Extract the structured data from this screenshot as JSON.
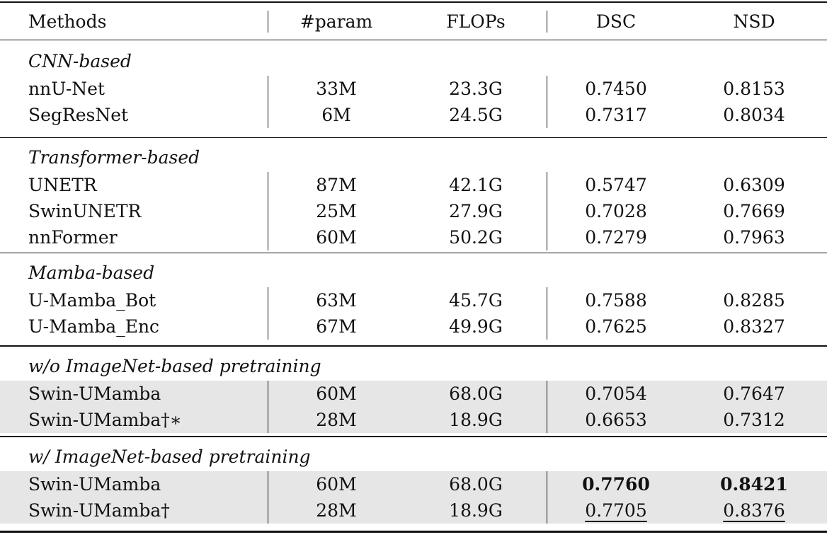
{
  "table": {
    "headers": [
      "Methods",
      "#param",
      "FLOPs",
      "DSC",
      "NSD"
    ],
    "sections": [
      {
        "title": "CNN-based",
        "shaded": false,
        "rows": [
          [
            "nnU-Net",
            "33M",
            "23.3G",
            "0.7450",
            "0.8153"
          ],
          [
            "SegResNet",
            "6M",
            "24.5G",
            "0.7317",
            "0.8034"
          ]
        ]
      },
      {
        "title": "Transformer-based",
        "shaded": false,
        "rows": [
          [
            "UNETR",
            "87M",
            "42.1G",
            "0.5747",
            "0.6309"
          ],
          [
            "SwinUNETR",
            "25M",
            "27.9G",
            "0.7028",
            "0.7669"
          ],
          [
            "nnFormer",
            "60M",
            "50.2G",
            "0.7279",
            "0.7963"
          ]
        ]
      },
      {
        "title": "Mamba-based",
        "shaded": false,
        "rows": [
          [
            "U-Mamba_Bot",
            "63M",
            "45.7G",
            "0.7588",
            "0.8285"
          ],
          [
            "U-Mamba_Enc",
            "67M",
            "49.9G",
            "0.7625",
            "0.8327"
          ]
        ]
      },
      {
        "title": "w/o ImageNet-based pretraining",
        "shaded": true,
        "rows": [
          [
            "Swin-UMamba",
            "60M",
            "68.0G",
            "0.7054",
            "0.7647"
          ],
          [
            "Swin-UMamba†∗",
            "28M",
            "18.9G",
            "0.6653",
            "0.7312"
          ]
        ]
      },
      {
        "title": "w/ ImageNet-based pretraining",
        "shaded": true,
        "rows": [
          [
            "Swin-UMamba",
            "60M",
            "68.0G",
            "0.7760",
            "0.8421"
          ],
          [
            "Swin-UMamba†",
            "28M",
            "18.9G",
            "0.7705",
            "0.8376"
          ]
        ]
      }
    ],
    "best": {
      "DSC": "0.7760",
      "NSD": "0.8421"
    },
    "second_best": {
      "DSC": "0.7705",
      "NSD": "0.8376"
    },
    "shade_color": "#e6e6e6"
  }
}
